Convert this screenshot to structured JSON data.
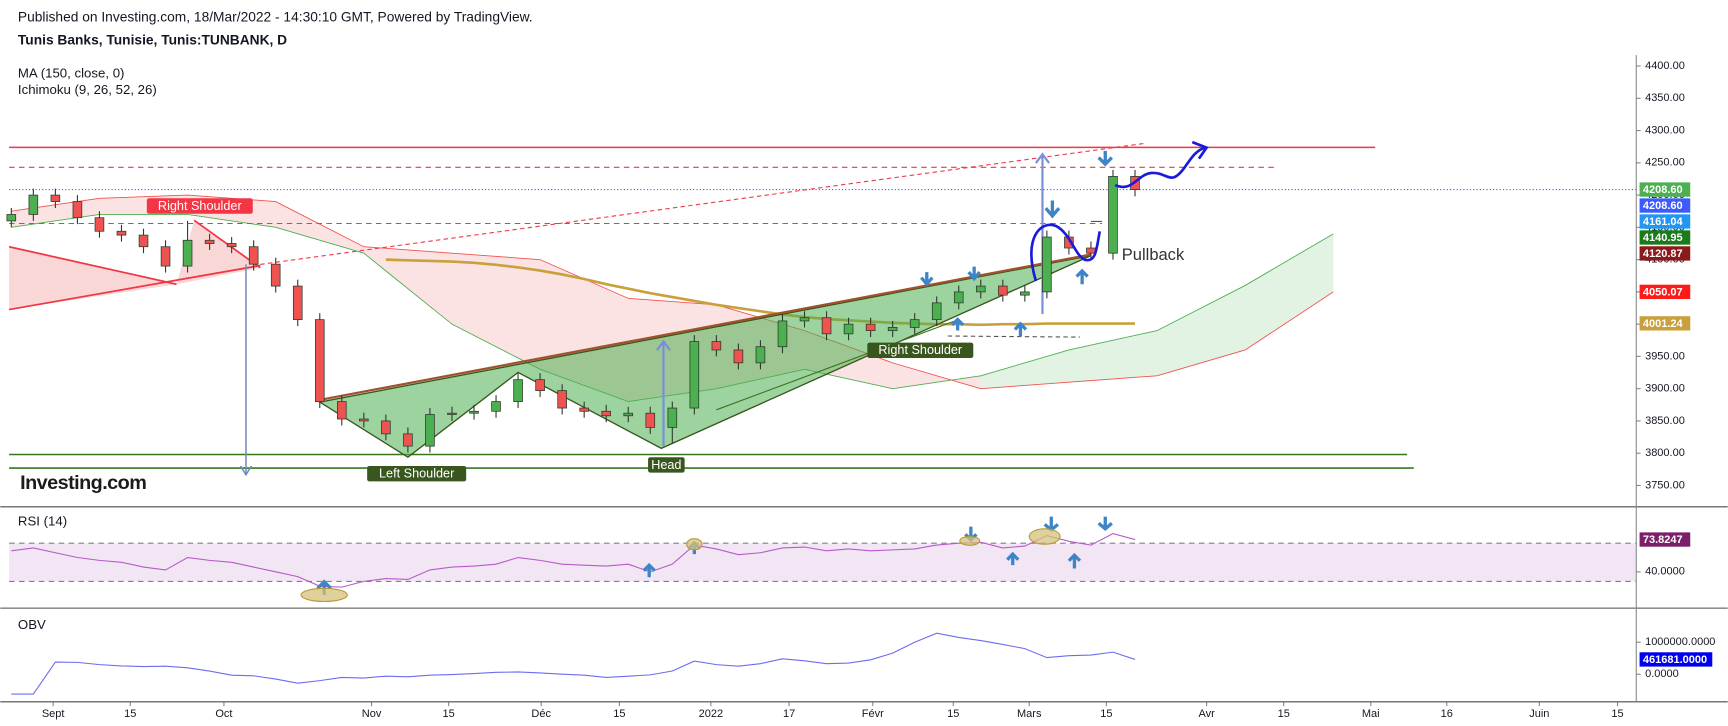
{
  "chart_data": {
    "type": "candlestick",
    "source": "Published on Investing.com, 18/Mar/2022 - 14:30:10 GMT, Powered by TradingView.",
    "title": "Tunis Banks, Tunisie, Tunis:TUNBANK, D",
    "logo": "Investing.com",
    "xlim": [
      -0.1,
      73.75
    ],
    "xticks": [
      {
        "value": 1.9,
        "label": "Sept"
      },
      {
        "value": 5.4,
        "label": "15"
      },
      {
        "value": 9.65,
        "label": "Oct"
      },
      {
        "value": 16.35,
        "label": "Nov"
      },
      {
        "value": 19.85,
        "label": "15"
      },
      {
        "value": 24.05,
        "label": "Déc"
      },
      {
        "value": 27.6,
        "label": "15"
      },
      {
        "value": 31.75,
        "label": "2022"
      },
      {
        "value": 35.3,
        "label": "17"
      },
      {
        "value": 39.1,
        "label": "Févr"
      },
      {
        "value": 42.75,
        "label": "15"
      },
      {
        "value": 46.2,
        "label": "Mars"
      },
      {
        "value": 49.7,
        "label": "15"
      },
      {
        "value": 54.25,
        "label": "Avr"
      },
      {
        "value": 57.75,
        "label": "15"
      },
      {
        "value": 61.7,
        "label": "Mai"
      },
      {
        "value": 65.15,
        "label": "16"
      },
      {
        "value": 69.35,
        "label": "Juin"
      },
      {
        "value": 72.9,
        "label": "15"
      }
    ],
    "ylim": [
      3717,
      4417
    ],
    "yticks": [
      {
        "value": 3750,
        "label": "3750.00"
      },
      {
        "value": 3800,
        "label": "3800.00"
      },
      {
        "value": 3850,
        "label": "3850.00"
      },
      {
        "value": 3900,
        "label": "3900.00"
      },
      {
        "value": 3950,
        "label": "3950.00"
      },
      {
        "value": 4000,
        "label": "4000.00"
      },
      {
        "value": 4050,
        "label": "4050.00"
      },
      {
        "value": 4100,
        "label": "4100.00"
      },
      {
        "value": 4150,
        "label": "4150.00"
      },
      {
        "value": 4200,
        "label": "4200.00"
      },
      {
        "value": 4250,
        "label": "4250.00"
      },
      {
        "value": 4300,
        "label": "4300.00"
      },
      {
        "value": 4350,
        "label": "4350.00"
      },
      {
        "value": 4400,
        "label": "4400.00"
      }
    ],
    "candles": {
      "up_color": "#4caf50",
      "down_color": "#ef5350",
      "open": [
        4160,
        4170,
        4200,
        4190,
        4165,
        4144,
        4138,
        4120,
        4090,
        4130,
        4125,
        4120,
        4093,
        4059,
        4007,
        3880,
        3853,
        3850,
        3830,
        3811,
        3860,
        3862,
        3865,
        3880,
        3914,
        3897,
        3870,
        3865,
        3858,
        3862,
        3840,
        3870,
        3973,
        3960,
        3940,
        3965,
        4005,
        4010,
        3985,
        4000,
        3990,
        3995,
        4007,
        4033,
        4050,
        4059,
        4045,
        4050,
        4135,
        4118,
        4110,
        4229
      ],
      "high": [
        4180,
        4210,
        4210,
        4200,
        4175,
        4154,
        4148,
        4130,
        4160,
        4140,
        4135,
        4130,
        4103,
        4069,
        4017,
        3890,
        3863,
        3860,
        3840,
        3870,
        3872,
        3875,
        3890,
        3924,
        3924,
        3907,
        3880,
        3875,
        3872,
        3872,
        3880,
        3983,
        3983,
        3970,
        3975,
        4015,
        4020,
        4020,
        4010,
        4010,
        4005,
        4017,
        4043,
        4060,
        4069,
        4069,
        4060,
        4145,
        4145,
        4128,
        4239,
        4239
      ],
      "low": [
        4150,
        4160,
        4180,
        4155,
        4134,
        4128,
        4110,
        4080,
        4080,
        4115,
        4110,
        4083,
        4049,
        3997,
        3870,
        3843,
        3840,
        3820,
        3801,
        3801,
        3850,
        3852,
        3855,
        3870,
        3887,
        3860,
        3855,
        3848,
        3848,
        3830,
        3815,
        3860,
        3950,
        3930,
        3930,
        3955,
        3995,
        3975,
        3975,
        3980,
        3980,
        3985,
        3997,
        4023,
        4040,
        4035,
        4035,
        4040,
        4108,
        4100,
        4100,
        4198
      ],
      "close": [
        4170,
        4200,
        4190,
        4165,
        4144,
        4138,
        4120,
        4090,
        4130,
        4125,
        4120,
        4093,
        4059,
        4007,
        3880,
        3853,
        3850,
        3830,
        3811,
        3860,
        3862,
        3865,
        3880,
        3914,
        3897,
        3870,
        3865,
        3858,
        3862,
        3840,
        3870,
        3973,
        3960,
        3940,
        3965,
        4005,
        4010,
        3985,
        4000,
        3990,
        3995,
        4007,
        4033,
        4050,
        4059,
        4045,
        4050,
        4135,
        4118,
        4110,
        4229,
        4208.6
      ]
    },
    "ma": {
      "name": "MA (150, close, 0)",
      "color": "#c9a03c",
      "values": [
        null,
        null,
        null,
        null,
        null,
        null,
        null,
        null,
        null,
        null,
        null,
        null,
        null,
        null,
        null,
        null,
        null,
        4100,
        4099,
        4098,
        4097,
        4095,
        4092,
        4088,
        4083,
        4077,
        4070,
        4062,
        4055,
        4048,
        4042,
        4036,
        4030,
        4025,
        4020,
        4015,
        4011,
        4008,
        4006,
        4004,
        4002,
        4001,
        4000,
        4000,
        3999,
        4000,
        4000,
        4001,
        4001,
        4001,
        4001,
        4001
      ]
    },
    "ichimoku": {
      "name": "Ichimoku (9, 26, 52, 26)",
      "bull_color": "#4caf50",
      "bear_color": "#ef5350",
      "x": [
        0,
        4,
        8,
        12,
        16,
        20,
        24,
        28,
        32,
        36,
        40,
        44,
        48,
        52,
        56,
        60
      ],
      "span_a": [
        4150,
        4170,
        4170,
        4150,
        4110,
        4000,
        3930,
        3880,
        3900,
        3930,
        3900,
        3920,
        3960,
        3990,
        4060,
        4140
      ],
      "span_b": [
        4175,
        4195,
        4200,
        4190,
        4120,
        4110,
        4100,
        4040,
        4030,
        3990,
        3940,
        3900,
        3910,
        3920,
        3960,
        4050
      ]
    },
    "levels": [
      {
        "value": 4274,
        "color": "#f23645",
        "dash": "solid"
      },
      {
        "value": 4243,
        "color": "#f23645",
        "dash": "dashed"
      },
      {
        "value": 4156,
        "color": "#f23645",
        "dash": "dashed"
      },
      {
        "value": 3798,
        "color": "#38761d",
        "dash": "solid"
      },
      {
        "value": 3777,
        "color": "#38761d",
        "dash": "solid"
      }
    ],
    "price_tags": [
      {
        "value": 4208.6,
        "label": "4208.60",
        "color": "#4caf50"
      },
      {
        "value": 4208.6,
        "label": "4208.60",
        "color": "#3d5afe"
      },
      {
        "value": 4161.04,
        "label": "4161.04",
        "color": "#2196f3"
      },
      {
        "value": 4140.95,
        "label": "4140.95",
        "color": "#1b7a1b"
      },
      {
        "value": 4120.87,
        "label": "4120.87",
        "color": "#8b1a1a"
      },
      {
        "value": 4050.07,
        "label": "4050.07",
        "color": "#ff1a1a"
      },
      {
        "value": 4001.24,
        "label": "4001.24",
        "color": "#c9a03c"
      }
    ],
    "annotations": [
      {
        "text": "Right Shoulder",
        "color": "#f23645"
      },
      {
        "text": "Left Shoulder",
        "color": "#38561d"
      },
      {
        "text": "Head",
        "color": "#38561d"
      },
      {
        "text": "Right Shoulder",
        "color": "#38561d"
      },
      {
        "text": "Pullback",
        "color": null
      }
    ],
    "rsi": {
      "name": "RSI (14)",
      "color": "#b65ac9",
      "band": [
        30,
        70
      ],
      "ylim": [
        2,
        107
      ],
      "yticks": [
        {
          "value": 40,
          "label": "40.0000"
        }
      ],
      "last_label": "73.8247",
      "tag_color": "#7b1f6a",
      "values": [
        62,
        65,
        60,
        55,
        52,
        50,
        45,
        42,
        55,
        52,
        50,
        45,
        40,
        35,
        25,
        24,
        30,
        33,
        32,
        42,
        45,
        46,
        48,
        55,
        52,
        48,
        47,
        46,
        48,
        40,
        48,
        68,
        64,
        58,
        60,
        65,
        66,
        62,
        64,
        62,
        63,
        64,
        68,
        70,
        71,
        65,
        67,
        78,
        72,
        68,
        80,
        73.8247
      ]
    },
    "obv": {
      "name": "OBV",
      "color": "#6c6cf0",
      "ylim": [
        -860000,
        2030000
      ],
      "yticks": [
        {
          "value": 0,
          "label": "0.0000"
        },
        {
          "value": 1000000,
          "label": "1000000.0000"
        }
      ],
      "last_label": "461681.0000",
      "tag_color": "#0000ee",
      "values": [
        -620000,
        -620000,
        380000,
        370000,
        300000,
        260000,
        240000,
        250000,
        200000,
        100000,
        -30000,
        -50000,
        -150000,
        -280000,
        -200000,
        -100000,
        -120000,
        -60000,
        -80000,
        -30000,
        -10000,
        20000,
        60000,
        70000,
        40000,
        0,
        -30000,
        -100000,
        -60000,
        -20000,
        100000,
        410000,
        300000,
        250000,
        330000,
        480000,
        420000,
        330000,
        350000,
        450000,
        660000,
        1000000,
        1280000,
        1150000,
        1050000,
        930000,
        800000,
        520000,
        580000,
        600000,
        690000,
        461681
      ]
    }
  }
}
